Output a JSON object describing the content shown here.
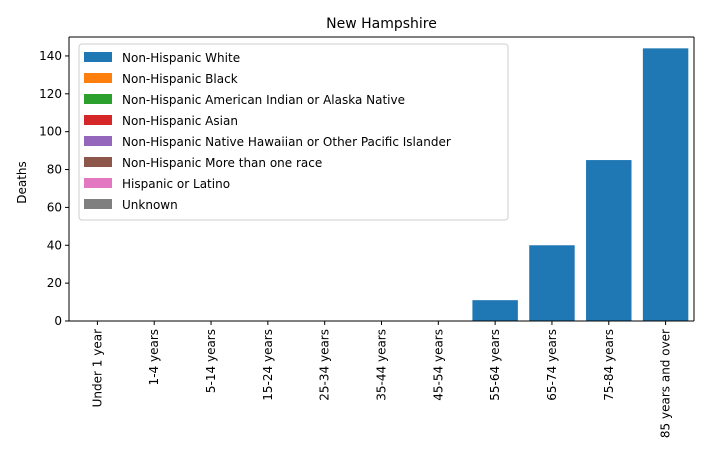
{
  "chart_data": {
    "type": "bar",
    "stacked": true,
    "title": "New Hampshire",
    "xlabel": "",
    "ylabel": "Deaths",
    "ylim": [
      0,
      150
    ],
    "yticks": [
      0,
      20,
      40,
      60,
      80,
      100,
      120,
      140
    ],
    "grid": false,
    "legend_position": "top-left",
    "categories": [
      "Under 1 year",
      "1-4 years",
      "5-14 years",
      "15-24 years",
      "25-34 years",
      "35-44 years",
      "45-54 years",
      "55-64 years",
      "65-74 years",
      "75-84 years",
      "85 years and over"
    ],
    "series": [
      {
        "name": "Non-Hispanic White",
        "color": "#1f77b4",
        "values": [
          0,
          0,
          0,
          0,
          0,
          0,
          0,
          11,
          40,
          85,
          144
        ]
      },
      {
        "name": "Non-Hispanic Black",
        "color": "#ff7f0e",
        "values": [
          0,
          0,
          0,
          0,
          0,
          0,
          0,
          0,
          0,
          0,
          0
        ]
      },
      {
        "name": "Non-Hispanic American Indian or Alaska Native",
        "color": "#2ca02c",
        "values": [
          0,
          0,
          0,
          0,
          0,
          0,
          0,
          0,
          0,
          0,
          0
        ]
      },
      {
        "name": "Non-Hispanic Asian",
        "color": "#d62728",
        "values": [
          0,
          0,
          0,
          0,
          0,
          0,
          0,
          0,
          0,
          0,
          0
        ]
      },
      {
        "name": "Non-Hispanic Native Hawaiian or Other Pacific Islander",
        "color": "#9467bd",
        "values": [
          0,
          0,
          0,
          0,
          0,
          0,
          0,
          0,
          0,
          0,
          0
        ]
      },
      {
        "name": "Non-Hispanic More than one race",
        "color": "#8c564b",
        "values": [
          0,
          0,
          0,
          0,
          0,
          0,
          0,
          0,
          0,
          0,
          0
        ]
      },
      {
        "name": "Hispanic or Latino",
        "color": "#e377c2",
        "values": [
          0,
          0,
          0,
          0,
          0,
          0,
          0,
          0,
          0,
          0,
          0
        ]
      },
      {
        "name": "Unknown",
        "color": "#7f7f7f",
        "values": [
          0,
          0,
          0,
          0,
          0,
          0,
          0,
          0,
          0,
          0,
          0
        ]
      }
    ]
  }
}
